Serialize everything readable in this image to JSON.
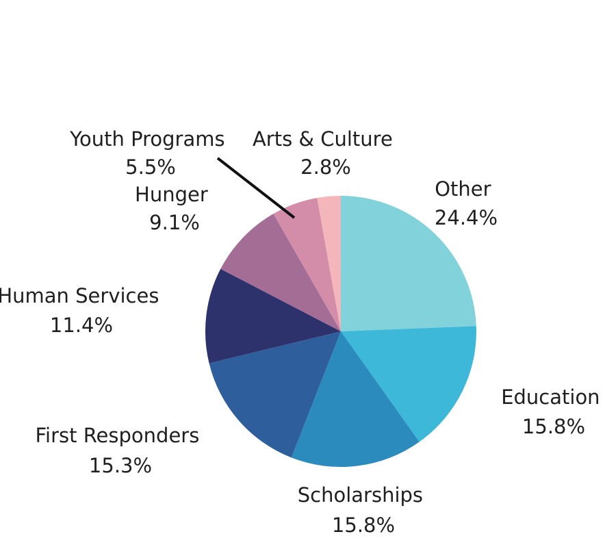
{
  "chart_data": {
    "type": "pie",
    "title": "",
    "slices": [
      {
        "label": "Other",
        "value": 24.4,
        "value_label": "24.4%",
        "color": "#81d2da"
      },
      {
        "label": "Education",
        "value": 15.8,
        "value_label": "15.8%",
        "color": "#3db8d8"
      },
      {
        "label": "Scholarships",
        "value": 15.8,
        "value_label": "15.8%",
        "color": "#2c8bbd"
      },
      {
        "label": "First Responders",
        "value": 15.3,
        "value_label": "15.3%",
        "color": "#2e5f9c"
      },
      {
        "label": "Human Services",
        "value": 11.4,
        "value_label": "11.4%",
        "color": "#2e326c"
      },
      {
        "label": "Hunger",
        "value": 9.1,
        "value_label": "9.1%",
        "color": "#a36d96"
      },
      {
        "label": "Youth Programs",
        "value": 5.5,
        "value_label": "5.5%",
        "color": "#d48da8"
      },
      {
        "label": "Arts & Culture",
        "value": 2.8,
        "value_label": "2.8%",
        "color": "#f5b6bb"
      }
    ],
    "start_angle": "12 o'clock",
    "direction": "clockwise",
    "legend": "none",
    "labels": "outside slices"
  }
}
